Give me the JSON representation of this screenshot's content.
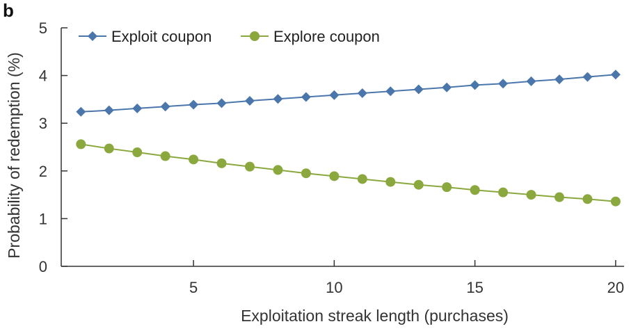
{
  "panel_label": "b",
  "colors": {
    "exploit": "#4a76ab",
    "explore": "#8aa83e",
    "axis": "#333333"
  },
  "chart_data": {
    "type": "line",
    "xlabel": "Exploitation streak length (purchases)",
    "ylabel": "Probability of redemption (%)",
    "xlim": [
      0.3,
      20.3
    ],
    "ylim": [
      0,
      5
    ],
    "xticks": [
      5,
      10,
      15,
      20
    ],
    "yticks": [
      0,
      1,
      2,
      3,
      4,
      5
    ],
    "grid": false,
    "legend_position": "top-left",
    "x": [
      1,
      2,
      3,
      4,
      5,
      6,
      7,
      8,
      9,
      10,
      11,
      12,
      13,
      14,
      15,
      16,
      17,
      18,
      19,
      20
    ],
    "series": [
      {
        "name": "Exploit coupon",
        "marker": "diamond",
        "values": [
          3.24,
          3.27,
          3.31,
          3.35,
          3.39,
          3.42,
          3.47,
          3.51,
          3.55,
          3.59,
          3.63,
          3.67,
          3.71,
          3.75,
          3.8,
          3.83,
          3.88,
          3.92,
          3.97,
          4.02
        ]
      },
      {
        "name": "Explore coupon",
        "marker": "circle",
        "values": [
          2.56,
          2.47,
          2.39,
          2.31,
          2.24,
          2.16,
          2.09,
          2.02,
          1.95,
          1.89,
          1.83,
          1.77,
          1.71,
          1.66,
          1.6,
          1.55,
          1.5,
          1.45,
          1.41,
          1.36
        ]
      }
    ]
  }
}
